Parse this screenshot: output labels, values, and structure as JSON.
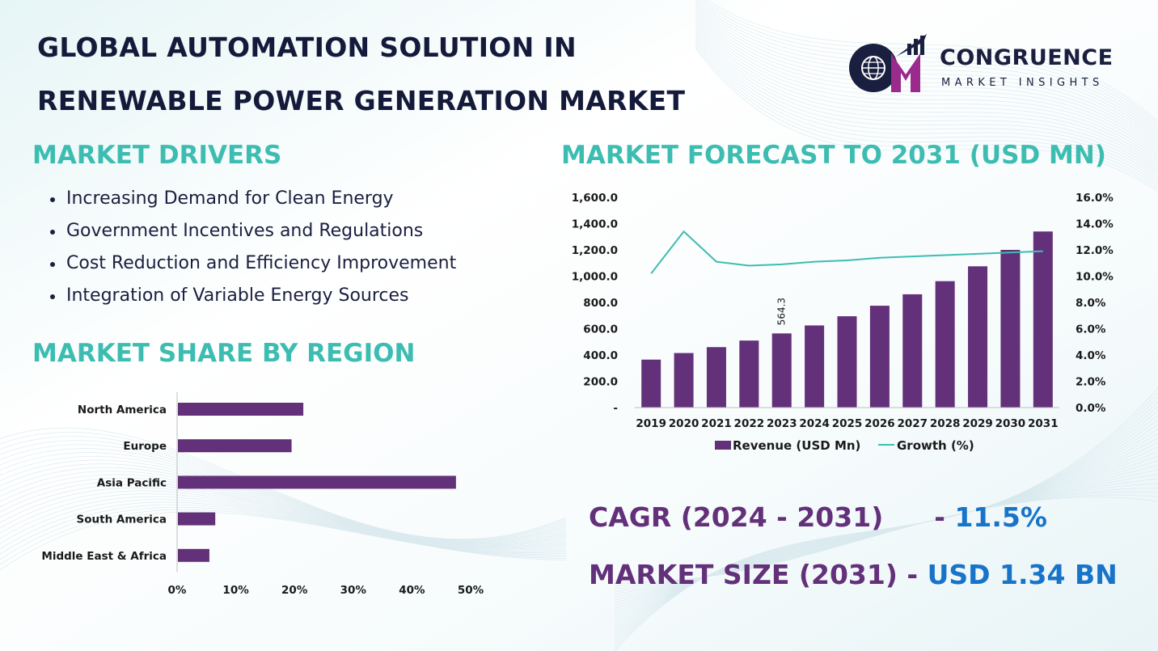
{
  "title": {
    "line1": "GLOBAL AUTOMATION SOLUTION IN",
    "line2": "RENEWABLE POWER GENERATION MARKET"
  },
  "logo": {
    "name": "CONGRUENCE",
    "tagline": "MARKET INSIGHTS",
    "icon": "globe-cm-logo-icon"
  },
  "drivers": {
    "heading": "MARKET DRIVERS",
    "items": [
      "Increasing Demand for Clean Energy",
      "Government Incentives and Regulations",
      "Cost Reduction and Efficiency Improvement",
      "Integration of Variable Energy Sources"
    ]
  },
  "region": {
    "heading": "MARKET SHARE BY REGION"
  },
  "forecast": {
    "heading": "MARKET FORECAST TO 2031 (USD MN)"
  },
  "kpis": {
    "cagr_label": "CAGR (2024 - 2031)",
    "cagr_sep": "- ",
    "cagr_value": "11.5%",
    "size_label": "MARKET SIZE (2031)",
    "size_sep": "- ",
    "size_value": "USD 1.34 BN"
  },
  "colors": {
    "bar": "#63307a",
    "line": "#3dbdb2",
    "heading_teal": "#3dbdb2",
    "kpi_purple": "#63307a",
    "kpi_blue": "#1874c9",
    "title": "#141a3a"
  },
  "chart_data": [
    {
      "type": "bar",
      "orientation": "horizontal",
      "categories": [
        "North America",
        "Europe",
        "Asia Pacific",
        "South America",
        "Middle East & Africa"
      ],
      "values": [
        21.5,
        19.5,
        47.5,
        6.5,
        5.5
      ],
      "xlim": [
        0,
        50
      ],
      "xticks": [
        0,
        10,
        20,
        30,
        40,
        50
      ],
      "xtick_labels": [
        "0%",
        "10%",
        "20%",
        "30%",
        "40%",
        "50%"
      ],
      "grid": false
    },
    {
      "type": "bar",
      "categories": [
        "2019",
        "2020",
        "2021",
        "2022",
        "2023",
        "2024",
        "2025",
        "2026",
        "2027",
        "2028",
        "2029",
        "2030",
        "2031"
      ],
      "series": [
        {
          "name": "Revenue (USD Mn)",
          "type": "bar",
          "axis": "left",
          "values": [
            365,
            415,
            460,
            510,
            564.3,
            625,
            695,
            775,
            862,
            962,
            1075,
            1200,
            1340
          ]
        },
        {
          "name": "Growth (%)",
          "type": "line",
          "axis": "right",
          "values": [
            10.2,
            13.4,
            11.1,
            10.8,
            10.9,
            11.1,
            11.2,
            11.4,
            11.5,
            11.6,
            11.7,
            11.8,
            11.9
          ]
        }
      ],
      "data_labels": [
        {
          "category": "2023",
          "text": "564.3"
        }
      ],
      "ylim_left": [
        0,
        1600
      ],
      "yticks_left": [
        0,
        200,
        400,
        600,
        800,
        1000,
        1200,
        1400,
        1600
      ],
      "ytick_labels_left": [
        "-",
        "200.0",
        "400.0",
        "600.0",
        "800.0",
        "1,000.0",
        "1,200.0",
        "1,400.0",
        "1,600.0"
      ],
      "ylim_right": [
        0,
        16
      ],
      "yticks_right": [
        0,
        2,
        4,
        6,
        8,
        10,
        12,
        14,
        16
      ],
      "ytick_labels_right": [
        "0.0%",
        "2.0%",
        "4.0%",
        "6.0%",
        "8.0%",
        "10.0%",
        "12.0%",
        "14.0%",
        "16.0%"
      ],
      "legend": "bottom",
      "grid": false
    }
  ]
}
